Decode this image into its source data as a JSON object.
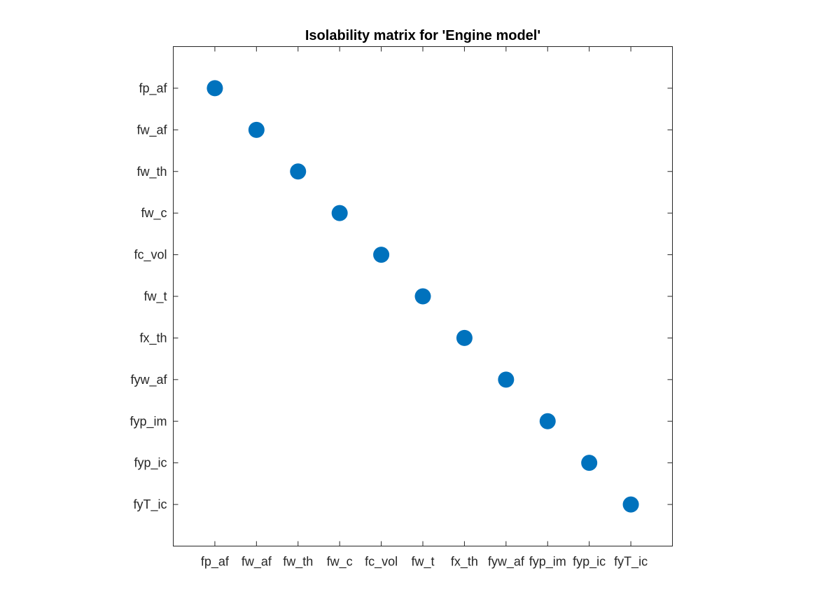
{
  "chart_data": {
    "type": "scatter",
    "title": "Isolability matrix for 'Engine model'",
    "xlabel": "",
    "ylabel": "",
    "categories": [
      "fp_af",
      "fw_af",
      "fw_th",
      "fw_c",
      "fc_vol",
      "fw_t",
      "fx_th",
      "fyw_af",
      "fyp_im",
      "fyp_ic",
      "fyT_ic"
    ],
    "x_tick_labels": [
      "fp_af",
      "fw_af",
      "fw_th",
      "fw_c",
      "fc_vol",
      "fw_t",
      "fx_th",
      "fyw_af",
      "fyp_im",
      "fyp_ic",
      "fyT_ic"
    ],
    "y_tick_labels": [
      "fp_af",
      "fw_af",
      "fw_th",
      "fw_c",
      "fc_vol",
      "fw_t",
      "fx_th",
      "fyw_af",
      "fyp_im",
      "fyp_ic",
      "fyT_ic"
    ],
    "xlim": [
      0,
      12
    ],
    "ylim": [
      0,
      12
    ],
    "y_reversed": true,
    "grid": false,
    "box": true,
    "marker_color": "#0072BD",
    "points": [
      {
        "x": 1,
        "y": 1
      },
      {
        "x": 2,
        "y": 2
      },
      {
        "x": 3,
        "y": 3
      },
      {
        "x": 4,
        "y": 4
      },
      {
        "x": 5,
        "y": 5
      },
      {
        "x": 6,
        "y": 6
      },
      {
        "x": 7,
        "y": 7
      },
      {
        "x": 8,
        "y": 8
      },
      {
        "x": 9,
        "y": 9
      },
      {
        "x": 10,
        "y": 10
      },
      {
        "x": 11,
        "y": 11
      }
    ]
  }
}
